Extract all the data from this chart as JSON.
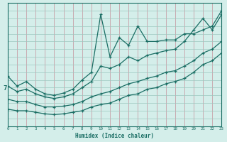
{
  "xlabel": "Humidex (Indice chaleur)",
  "bg_color": "#d4eeea",
  "line_color": "#1a6e64",
  "grid_color_v": "#c8a0a8",
  "grid_color_h": "#9cc8c0",
  "ytick_val": 7,
  "ytick_label": "7",
  "xlim": [
    0,
    23
  ],
  "ylim": [
    2,
    18
  ],
  "xticks": [
    0,
    1,
    2,
    3,
    4,
    5,
    6,
    7,
    8,
    9,
    10,
    11,
    12,
    13,
    14,
    15,
    16,
    17,
    18,
    19,
    20,
    21,
    22,
    23
  ],
  "series": [
    {
      "x": [
        0,
        1,
        2,
        3,
        4,
        5,
        6,
        7,
        8,
        9,
        10,
        11,
        12,
        13,
        14,
        15,
        16,
        17,
        18,
        19,
        20,
        21,
        22,
        23
      ],
      "y": [
        8.5,
        7.2,
        7.8,
        6.8,
        6.2,
        6.0,
        6.3,
        6.8,
        8.0,
        9.0,
        16.5,
        11.0,
        13.5,
        12.5,
        15.0,
        13.0,
        13.0,
        13.2,
        13.2,
        14.0,
        14.0,
        14.5,
        15.0,
        17.0
      ]
    },
    {
      "x": [
        0,
        1,
        2,
        3,
        4,
        5,
        6,
        7,
        8,
        9,
        10,
        11,
        12,
        13,
        14,
        15,
        16,
        17,
        18,
        19,
        20,
        21,
        22,
        23
      ],
      "y": [
        7.2,
        6.5,
        6.8,
        6.2,
        5.8,
        5.6,
        5.8,
        6.2,
        7.0,
        7.8,
        9.8,
        9.5,
        10.0,
        11.0,
        10.5,
        11.2,
        11.5,
        11.8,
        12.0,
        13.0,
        14.5,
        16.0,
        14.5,
        16.5
      ]
    },
    {
      "x": [
        0,
        1,
        2,
        3,
        4,
        5,
        6,
        7,
        8,
        9,
        10,
        11,
        12,
        13,
        14,
        15,
        16,
        17,
        18,
        19,
        20,
        21,
        22,
        23
      ],
      "y": [
        5.5,
        5.2,
        5.2,
        4.8,
        4.5,
        4.5,
        4.6,
        4.8,
        5.2,
        5.8,
        6.2,
        6.5,
        7.0,
        7.5,
        7.8,
        8.2,
        8.5,
        9.0,
        9.2,
        9.8,
        10.5,
        11.5,
        12.0,
        13.0
      ]
    },
    {
      "x": [
        0,
        1,
        2,
        3,
        4,
        5,
        6,
        7,
        8,
        9,
        10,
        11,
        12,
        13,
        14,
        15,
        16,
        17,
        18,
        19,
        20,
        21,
        22,
        23
      ],
      "y": [
        4.2,
        4.0,
        4.0,
        3.8,
        3.6,
        3.5,
        3.6,
        3.8,
        4.0,
        4.5,
        4.8,
        5.0,
        5.5,
        6.0,
        6.2,
        6.8,
        7.0,
        7.5,
        7.8,
        8.2,
        9.0,
        10.0,
        10.5,
        11.5
      ]
    }
  ]
}
